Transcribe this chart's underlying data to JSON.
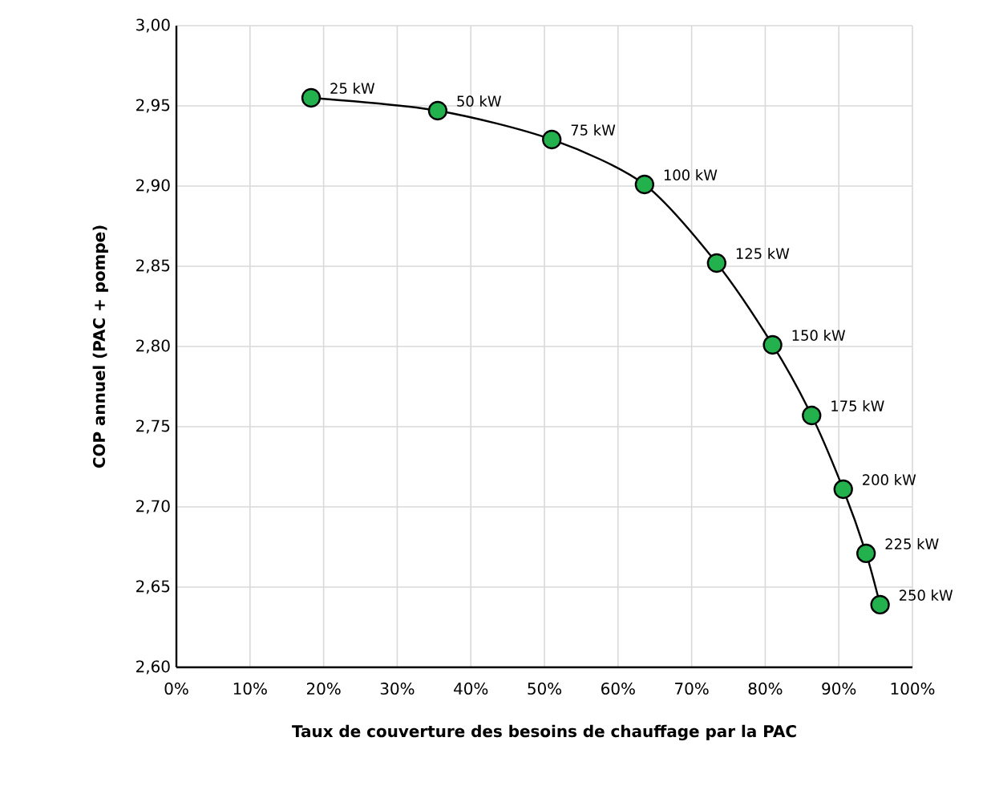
{
  "chart_data": {
    "type": "line",
    "xlabel": "Taux de couverture des besoins de chauffage par la PAC",
    "ylabel": "COP annuel (PAC + pompe)",
    "x": [
      18.3,
      35.5,
      51.0,
      63.6,
      73.4,
      81.0,
      86.3,
      90.6,
      93.7,
      95.6
    ],
    "series": [
      {
        "color": "#22b14c",
        "values": [
          2.955,
          2.947,
          2.929,
          2.901,
          2.852,
          2.801,
          2.757,
          2.711,
          2.671,
          2.639
        ]
      }
    ],
    "xlim": [
      0,
      100
    ],
    "ylim": [
      2.6,
      3.0
    ],
    "xticks": [
      {
        "value": 0,
        "label": "0%"
      },
      {
        "value": 10,
        "label": "10%"
      },
      {
        "value": 20,
        "label": "20%"
      },
      {
        "value": 30,
        "label": "30%"
      },
      {
        "value": 40,
        "label": "40%"
      },
      {
        "value": 50,
        "label": "50%"
      },
      {
        "value": 60,
        "label": "60%"
      },
      {
        "value": 70,
        "label": "70%"
      },
      {
        "value": 80,
        "label": "80%"
      },
      {
        "value": 90,
        "label": "90%"
      },
      {
        "value": 100,
        "label": "100%"
      }
    ],
    "yticks": [
      {
        "value": 2.6,
        "label": "2,60"
      },
      {
        "value": 2.65,
        "label": "2,65"
      },
      {
        "value": 2.7,
        "label": "2,70"
      },
      {
        "value": 2.75,
        "label": "2,75"
      },
      {
        "value": 2.8,
        "label": "2,80"
      },
      {
        "value": 2.85,
        "label": "2,85"
      },
      {
        "value": 2.9,
        "label": "2,90"
      },
      {
        "value": 2.95,
        "label": "2,95"
      },
      {
        "value": 3.0,
        "label": "3,00"
      }
    ],
    "grid": true,
    "marker": "circle",
    "line_style": "solid",
    "annotations": [
      {
        "text": "25 kW",
        "x": 18.3,
        "y": 2.955
      },
      {
        "text": "50 kW",
        "x": 35.5,
        "y": 2.947
      },
      {
        "text": "75 kW",
        "x": 51.0,
        "y": 2.929
      },
      {
        "text": "100 kW",
        "x": 63.6,
        "y": 2.901
      },
      {
        "text": "125 kW",
        "x": 73.4,
        "y": 2.852
      },
      {
        "text": "150 kW",
        "x": 81.0,
        "y": 2.801
      },
      {
        "text": "175 kW",
        "x": 86.3,
        "y": 2.757
      },
      {
        "text": "200 kW",
        "x": 90.6,
        "y": 2.711
      },
      {
        "text": "225 kW",
        "x": 93.7,
        "y": 2.671
      },
      {
        "text": "250 kW",
        "x": 95.6,
        "y": 2.639
      }
    ]
  }
}
